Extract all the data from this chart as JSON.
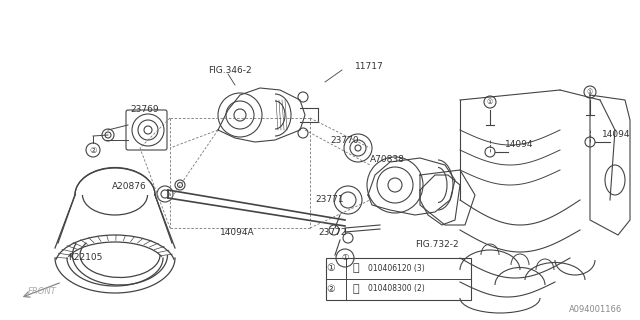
{
  "bg_color": "#ffffff",
  "line_color": "#444444",
  "text_color": "#333333",
  "watermark": "A094001166",
  "legend_line1_num": "①",
  "legend_line1_sym": "ß",
  "legend_line1_text": "010406120 (3)",
  "legend_line2_num": "②",
  "legend_line2_sym": "ß",
  "legend_line2_text": "010408300 (2)"
}
